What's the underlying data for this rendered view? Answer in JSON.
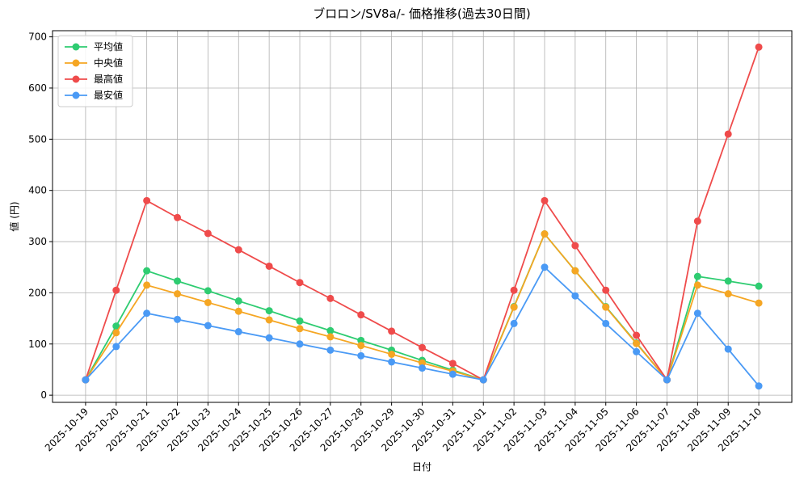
{
  "chart_data": {
    "type": "line",
    "title": "ブロロン/SV8a/- 価格推移(過去30日間)",
    "x_label": "日付",
    "y_label": "値 (円)",
    "categories": [
      "2025-10-19",
      "2025-10-20",
      "2025-10-21",
      "2025-10-22",
      "2025-10-23",
      "2025-10-24",
      "2025-10-25",
      "2025-10-26",
      "2025-10-27",
      "2025-10-28",
      "2025-10-29",
      "2025-10-30",
      "2025-10-31",
      "2025-11-01",
      "2025-11-02",
      "2025-11-03",
      "2025-11-04",
      "2025-11-05",
      "2025-11-06",
      "2025-11-07",
      "2025-11-08",
      "2025-11-09",
      "2025-11-10"
    ],
    "series": [
      {
        "name": "平均値",
        "color": "#2ecc71",
        "values": [
          30,
          135,
          243,
          223,
          204,
          184,
          165,
          145,
          126,
          107,
          88,
          68,
          49,
          30,
          173,
          315,
          243,
          173,
          102,
          30,
          232,
          223,
          213
        ]
      },
      {
        "name": "中央値",
        "color": "#f5a623",
        "values": [
          30,
          122,
          215,
          198,
          181,
          164,
          147,
          130,
          114,
          97,
          80,
          63,
          47,
          30,
          172,
          315,
          243,
          172,
          101,
          30,
          215,
          198,
          180
        ]
      },
      {
        "name": "最高値",
        "color": "#ef4b4b",
        "values": [
          30,
          205,
          380,
          347,
          316,
          284,
          252,
          220,
          189,
          157,
          125,
          93,
          62,
          30,
          205,
          380,
          292,
          205,
          117,
          30,
          340,
          510,
          680
        ]
      },
      {
        "name": "最安値",
        "color": "#4a9af5",
        "values": [
          30,
          95,
          160,
          148,
          136,
          124,
          112,
          100,
          88,
          77,
          65,
          53,
          41,
          30,
          140,
          250,
          194,
          140,
          85,
          30,
          160,
          90,
          18
        ]
      }
    ],
    "ylim": [
      -14,
      712
    ],
    "yticks": [
      0,
      100,
      200,
      300,
      400,
      500,
      600,
      700
    ],
    "grid": true,
    "legend": "upper-left"
  }
}
